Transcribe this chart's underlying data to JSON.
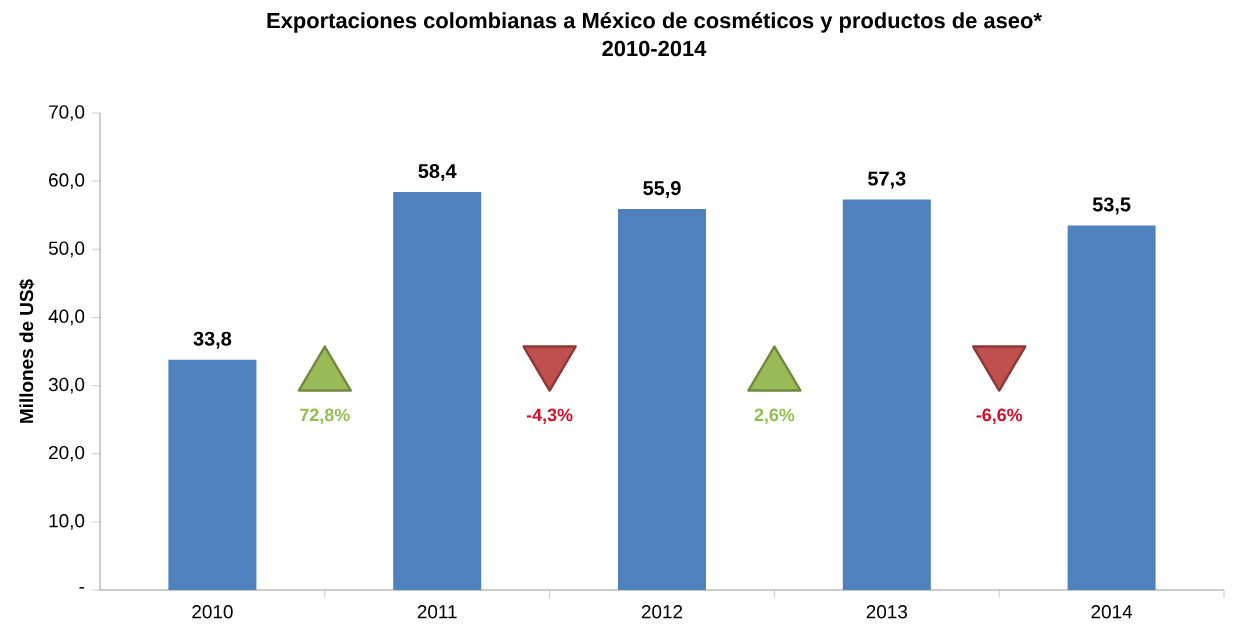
{
  "chart_data": {
    "type": "bar",
    "title": "Exportaciones colombianas a México de cosméticos y productos de aseo*",
    "subtitle": "2010-2014",
    "ylabel": "Millones de US$",
    "categories": [
      "2010",
      "2011",
      "2012",
      "2013",
      "2014"
    ],
    "values": [
      33.8,
      58.4,
      55.9,
      57.3,
      53.5
    ],
    "value_labels": [
      "33,8",
      "58,4",
      "55,9",
      "57,3",
      "53,5"
    ],
    "color": "#4f81bd",
    "ylim": [
      0,
      70
    ],
    "yticks": [
      {
        "value": 0,
        "label": "-"
      },
      {
        "value": 10,
        "label": "10,0"
      },
      {
        "value": 20,
        "label": "20,0"
      },
      {
        "value": 30,
        "label": "30,0"
      },
      {
        "value": 40,
        "label": "40,0"
      },
      {
        "value": 50,
        "label": "50,0"
      },
      {
        "value": 60,
        "label": "60,0"
      },
      {
        "value": 70,
        "label": "70,0"
      }
    ],
    "annotations": [
      "72,8%",
      "-4,3%",
      "2,6%",
      "-6,6%"
    ],
    "grid": false
  }
}
